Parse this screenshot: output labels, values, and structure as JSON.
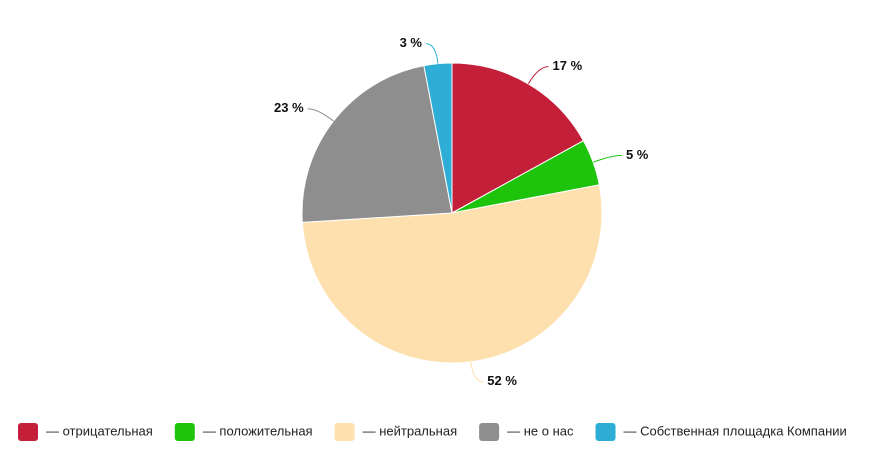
{
  "chart_data": {
    "type": "pie",
    "categories": [
      "— отрицательная",
      "— положительная",
      "— нейтральная",
      "— не о нас",
      "— Собственная площадка Компании"
    ],
    "values": [
      17,
      5,
      52,
      23,
      3
    ],
    "value_labels": [
      "17 %",
      "5 %",
      "52 %",
      "23 %",
      "3 %"
    ],
    "colors": [
      "#c41f38",
      "#1ec40c",
      "#fde0ae",
      "#8e8e8e",
      "#2eaed6"
    ],
    "legend": "bottom"
  }
}
